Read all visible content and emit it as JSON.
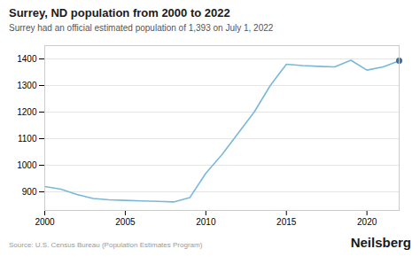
{
  "chart_data": {
    "type": "line",
    "title": "Surrey, ND population from 2000 to 2022",
    "subtitle": "Surrey had an official estimated population of 1,393 on July 1, 2022",
    "annotations": [
      "Source: U.S. Census Bureau (Population Estimates Program)",
      "Neilsberg"
    ],
    "x": [
      2000,
      2001,
      2002,
      2003,
      2004,
      2005,
      2006,
      2007,
      2008,
      2009,
      2010,
      2011,
      2012,
      2013,
      2014,
      2015,
      2016,
      2017,
      2018,
      2019,
      2020,
      2021,
      2022
    ],
    "series": [
      {
        "type": "line",
        "color": "#7ab8d9",
        "values": [
          920,
          910,
          890,
          875,
          870,
          868,
          866,
          864,
          862,
          878,
          970,
          1040,
          1120,
          1200,
          1300,
          1380,
          1375,
          1372,
          1370,
          1395,
          1358,
          1370,
          1393
        ]
      },
      {
        "type": "scatter",
        "color": "#3a6fa8",
        "values": [
          null,
          null,
          null,
          null,
          null,
          null,
          null,
          null,
          null,
          null,
          null,
          null,
          null,
          null,
          null,
          null,
          null,
          null,
          null,
          null,
          null,
          null,
          1393
        ]
      }
    ],
    "xlim": [
      2000,
      2022
    ],
    "xticks": [
      2000,
      2005,
      2010,
      2015,
      2020
    ],
    "ylim": [
      830,
      1450
    ],
    "yticks": [
      900,
      1000,
      1100,
      1200,
      1300,
      1400
    ],
    "grid": true
  }
}
